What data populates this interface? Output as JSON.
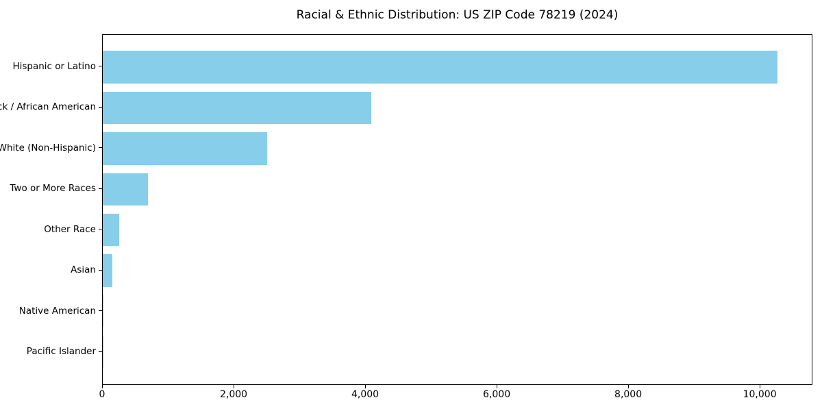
{
  "page": {
    "background_color": "#ffffff",
    "text_color": "#000000",
    "spine_color": "#000000"
  },
  "chart_data": {
    "type": "bar",
    "orientation": "horizontal",
    "title": "Racial & Ethnic Distribution: US ZIP Code 78219 (2024)",
    "xlabel": "",
    "ylabel": "",
    "categories": [
      "Hispanic or Latino",
      "Black / African American",
      "White (Non-Hispanic)",
      "Two or More Races",
      "Other Race",
      "Asian",
      "Native American",
      "Pacific Islander"
    ],
    "values": [
      10260,
      4085,
      2500,
      690,
      255,
      145,
      15,
      5
    ],
    "bar_color": "#87CEEB",
    "xlim": [
      0,
      10780
    ],
    "x_ticks": [
      0,
      2000,
      4000,
      6000,
      8000,
      10000
    ],
    "x_tick_labels": [
      "0",
      "2,000",
      "4,000",
      "6,000",
      "8,000",
      "10,000"
    ],
    "grid": false,
    "legend": "none",
    "bar_width_fraction": 0.8,
    "axis_margin_fraction": 0.05
  }
}
